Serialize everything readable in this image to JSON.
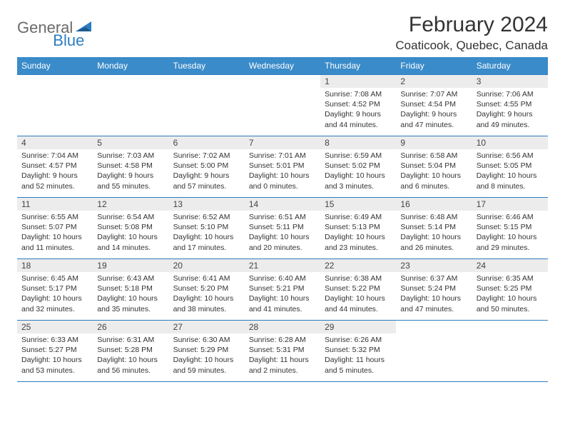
{
  "logo": {
    "part1": "General",
    "part2": "Blue"
  },
  "title": "February 2024",
  "location": "Coaticook, Quebec, Canada",
  "colors": {
    "header_bg": "#3a8bc9",
    "header_text": "#ffffff",
    "border": "#2d7cc1",
    "daynum_bg": "#ececec",
    "logo_gray": "#6a6a6a",
    "logo_blue": "#2d7cc1"
  },
  "day_headers": [
    "Sunday",
    "Monday",
    "Tuesday",
    "Wednesday",
    "Thursday",
    "Friday",
    "Saturday"
  ],
  "weeks": [
    [
      null,
      null,
      null,
      null,
      {
        "n": "1",
        "sr": "7:08 AM",
        "ss": "4:52 PM",
        "dl": "9 hours and 44 minutes."
      },
      {
        "n": "2",
        "sr": "7:07 AM",
        "ss": "4:54 PM",
        "dl": "9 hours and 47 minutes."
      },
      {
        "n": "3",
        "sr": "7:06 AM",
        "ss": "4:55 PM",
        "dl": "9 hours and 49 minutes."
      }
    ],
    [
      {
        "n": "4",
        "sr": "7:04 AM",
        "ss": "4:57 PM",
        "dl": "9 hours and 52 minutes."
      },
      {
        "n": "5",
        "sr": "7:03 AM",
        "ss": "4:58 PM",
        "dl": "9 hours and 55 minutes."
      },
      {
        "n": "6",
        "sr": "7:02 AM",
        "ss": "5:00 PM",
        "dl": "9 hours and 57 minutes."
      },
      {
        "n": "7",
        "sr": "7:01 AM",
        "ss": "5:01 PM",
        "dl": "10 hours and 0 minutes."
      },
      {
        "n": "8",
        "sr": "6:59 AM",
        "ss": "5:02 PM",
        "dl": "10 hours and 3 minutes."
      },
      {
        "n": "9",
        "sr": "6:58 AM",
        "ss": "5:04 PM",
        "dl": "10 hours and 6 minutes."
      },
      {
        "n": "10",
        "sr": "6:56 AM",
        "ss": "5:05 PM",
        "dl": "10 hours and 8 minutes."
      }
    ],
    [
      {
        "n": "11",
        "sr": "6:55 AM",
        "ss": "5:07 PM",
        "dl": "10 hours and 11 minutes."
      },
      {
        "n": "12",
        "sr": "6:54 AM",
        "ss": "5:08 PM",
        "dl": "10 hours and 14 minutes."
      },
      {
        "n": "13",
        "sr": "6:52 AM",
        "ss": "5:10 PM",
        "dl": "10 hours and 17 minutes."
      },
      {
        "n": "14",
        "sr": "6:51 AM",
        "ss": "5:11 PM",
        "dl": "10 hours and 20 minutes."
      },
      {
        "n": "15",
        "sr": "6:49 AM",
        "ss": "5:13 PM",
        "dl": "10 hours and 23 minutes."
      },
      {
        "n": "16",
        "sr": "6:48 AM",
        "ss": "5:14 PM",
        "dl": "10 hours and 26 minutes."
      },
      {
        "n": "17",
        "sr": "6:46 AM",
        "ss": "5:15 PM",
        "dl": "10 hours and 29 minutes."
      }
    ],
    [
      {
        "n": "18",
        "sr": "6:45 AM",
        "ss": "5:17 PM",
        "dl": "10 hours and 32 minutes."
      },
      {
        "n": "19",
        "sr": "6:43 AM",
        "ss": "5:18 PM",
        "dl": "10 hours and 35 minutes."
      },
      {
        "n": "20",
        "sr": "6:41 AM",
        "ss": "5:20 PM",
        "dl": "10 hours and 38 minutes."
      },
      {
        "n": "21",
        "sr": "6:40 AM",
        "ss": "5:21 PM",
        "dl": "10 hours and 41 minutes."
      },
      {
        "n": "22",
        "sr": "6:38 AM",
        "ss": "5:22 PM",
        "dl": "10 hours and 44 minutes."
      },
      {
        "n": "23",
        "sr": "6:37 AM",
        "ss": "5:24 PM",
        "dl": "10 hours and 47 minutes."
      },
      {
        "n": "24",
        "sr": "6:35 AM",
        "ss": "5:25 PM",
        "dl": "10 hours and 50 minutes."
      }
    ],
    [
      {
        "n": "25",
        "sr": "6:33 AM",
        "ss": "5:27 PM",
        "dl": "10 hours and 53 minutes."
      },
      {
        "n": "26",
        "sr": "6:31 AM",
        "ss": "5:28 PM",
        "dl": "10 hours and 56 minutes."
      },
      {
        "n": "27",
        "sr": "6:30 AM",
        "ss": "5:29 PM",
        "dl": "10 hours and 59 minutes."
      },
      {
        "n": "28",
        "sr": "6:28 AM",
        "ss": "5:31 PM",
        "dl": "11 hours and 2 minutes."
      },
      {
        "n": "29",
        "sr": "6:26 AM",
        "ss": "5:32 PM",
        "dl": "11 hours and 5 minutes."
      },
      null,
      null
    ]
  ],
  "labels": {
    "sunrise": "Sunrise:",
    "sunset": "Sunset:",
    "daylight": "Daylight:"
  }
}
